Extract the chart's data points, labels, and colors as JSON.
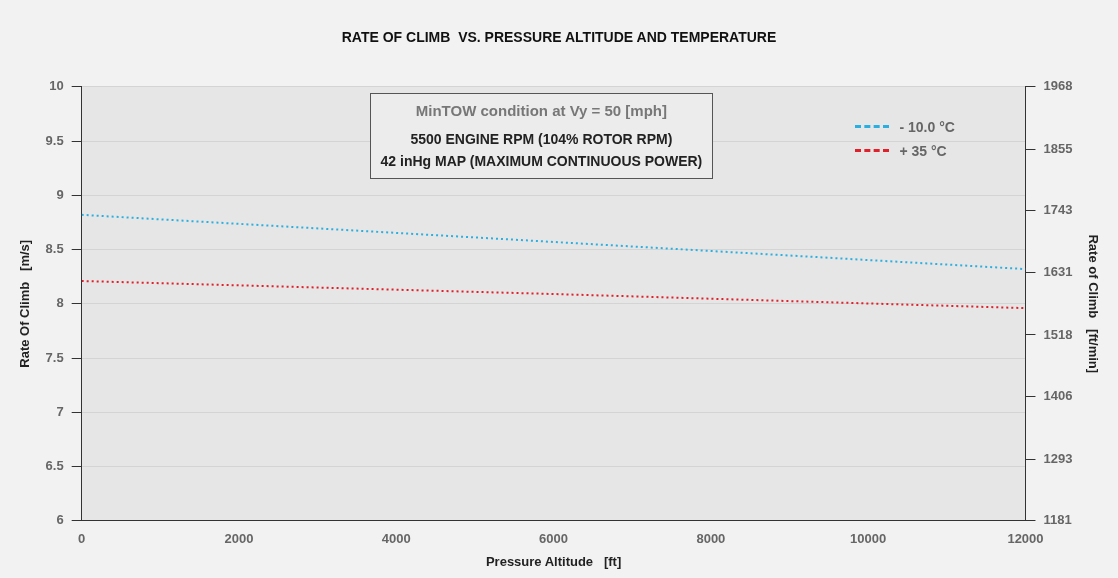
{
  "chart_data": {
    "type": "line",
    "title": "RATE OF CLIMB  VS. PRESSURE ALTITUDE AND TEMPERATURE",
    "xlabel": "Pressure Altitude   [ft]",
    "ylabel": "Rate Of Climb   [m/s]",
    "y2label": "Rate of Climb   [ft/min]",
    "annotations": [
      "MinTOW condition      at Vy = 50 [mph]",
      "5500 ENGINE RPM (104% ROTOR RPM)",
      "42 inHg MAP (MAXIMUM CONTINUOUS POWER)"
    ],
    "x": [
      0,
      6000,
      12000
    ],
    "series": [
      {
        "name": "- 10.0 °C",
        "color": "#2ab0e0",
        "values": [
          8.82,
          8.57,
          8.32
        ]
      },
      {
        "name": "+ 35 °C",
        "color": "#e0202a",
        "values": [
          8.21,
          8.09,
          7.96
        ]
      }
    ],
    "xlim": [
      0,
      12000
    ],
    "xticks": [
      0,
      2000,
      4000,
      6000,
      8000,
      10000,
      12000
    ],
    "ylim": [
      6,
      10
    ],
    "yticks": [
      6,
      6.5,
      7,
      7.5,
      8,
      8.5,
      9,
      9.5,
      10
    ],
    "y2lim": [
      1181,
      1968
    ],
    "y2ticks": [
      1181,
      1293,
      1406,
      1518,
      1631,
      1743,
      1855,
      1968
    ],
    "grid": "y",
    "legend": "top right",
    "marker": "none",
    "line_style": "dotted"
  }
}
